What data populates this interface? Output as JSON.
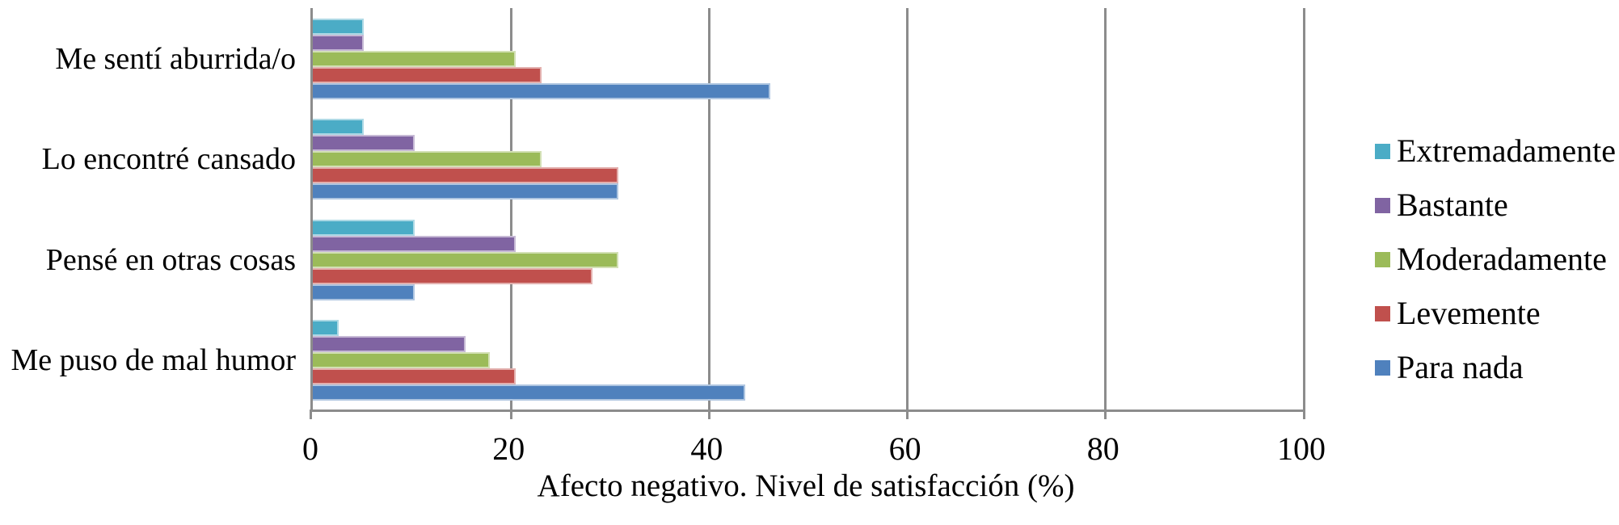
{
  "chart_data": {
    "type": "bar",
    "orientation": "horizontal",
    "title": "",
    "xlabel": "Afecto negativo. Nivel de satisfacción (%)",
    "ylabel": "",
    "xlim": [
      0,
      100
    ],
    "x_ticks": [
      0,
      20,
      40,
      60,
      80,
      100
    ],
    "x_tick_labels": [
      "0",
      "20",
      "40",
      "60",
      "80",
      "100"
    ],
    "grid": true,
    "legend_position": "right",
    "categories": [
      "Me sentí aburrida/o",
      "Lo encontré cansado",
      "Pensé en otras cosas",
      "Me puso de mal humor"
    ],
    "series": [
      {
        "name": "Extremadamente",
        "color": "#4BACC6",
        "values": [
          5.1,
          5.1,
          10.3,
          2.6
        ]
      },
      {
        "name": "Bastante",
        "color": "#8064A2",
        "values": [
          5.1,
          10.3,
          20.5,
          15.4
        ]
      },
      {
        "name": "Moderadamente",
        "color": "#9BBB59",
        "values": [
          20.5,
          23.1,
          30.8,
          17.9
        ]
      },
      {
        "name": "Levemente",
        "color": "#C0504D",
        "values": [
          23.1,
          30.8,
          28.2,
          20.5
        ]
      },
      {
        "name": "Para nada",
        "color": "#4F81BD",
        "values": [
          46.2,
          30.8,
          10.3,
          43.6
        ]
      }
    ]
  },
  "colors": {
    "gridline": "#8C8C8C",
    "axis_line": "#8C8C8C",
    "text": "#000000",
    "background": "#FFFFFF"
  }
}
